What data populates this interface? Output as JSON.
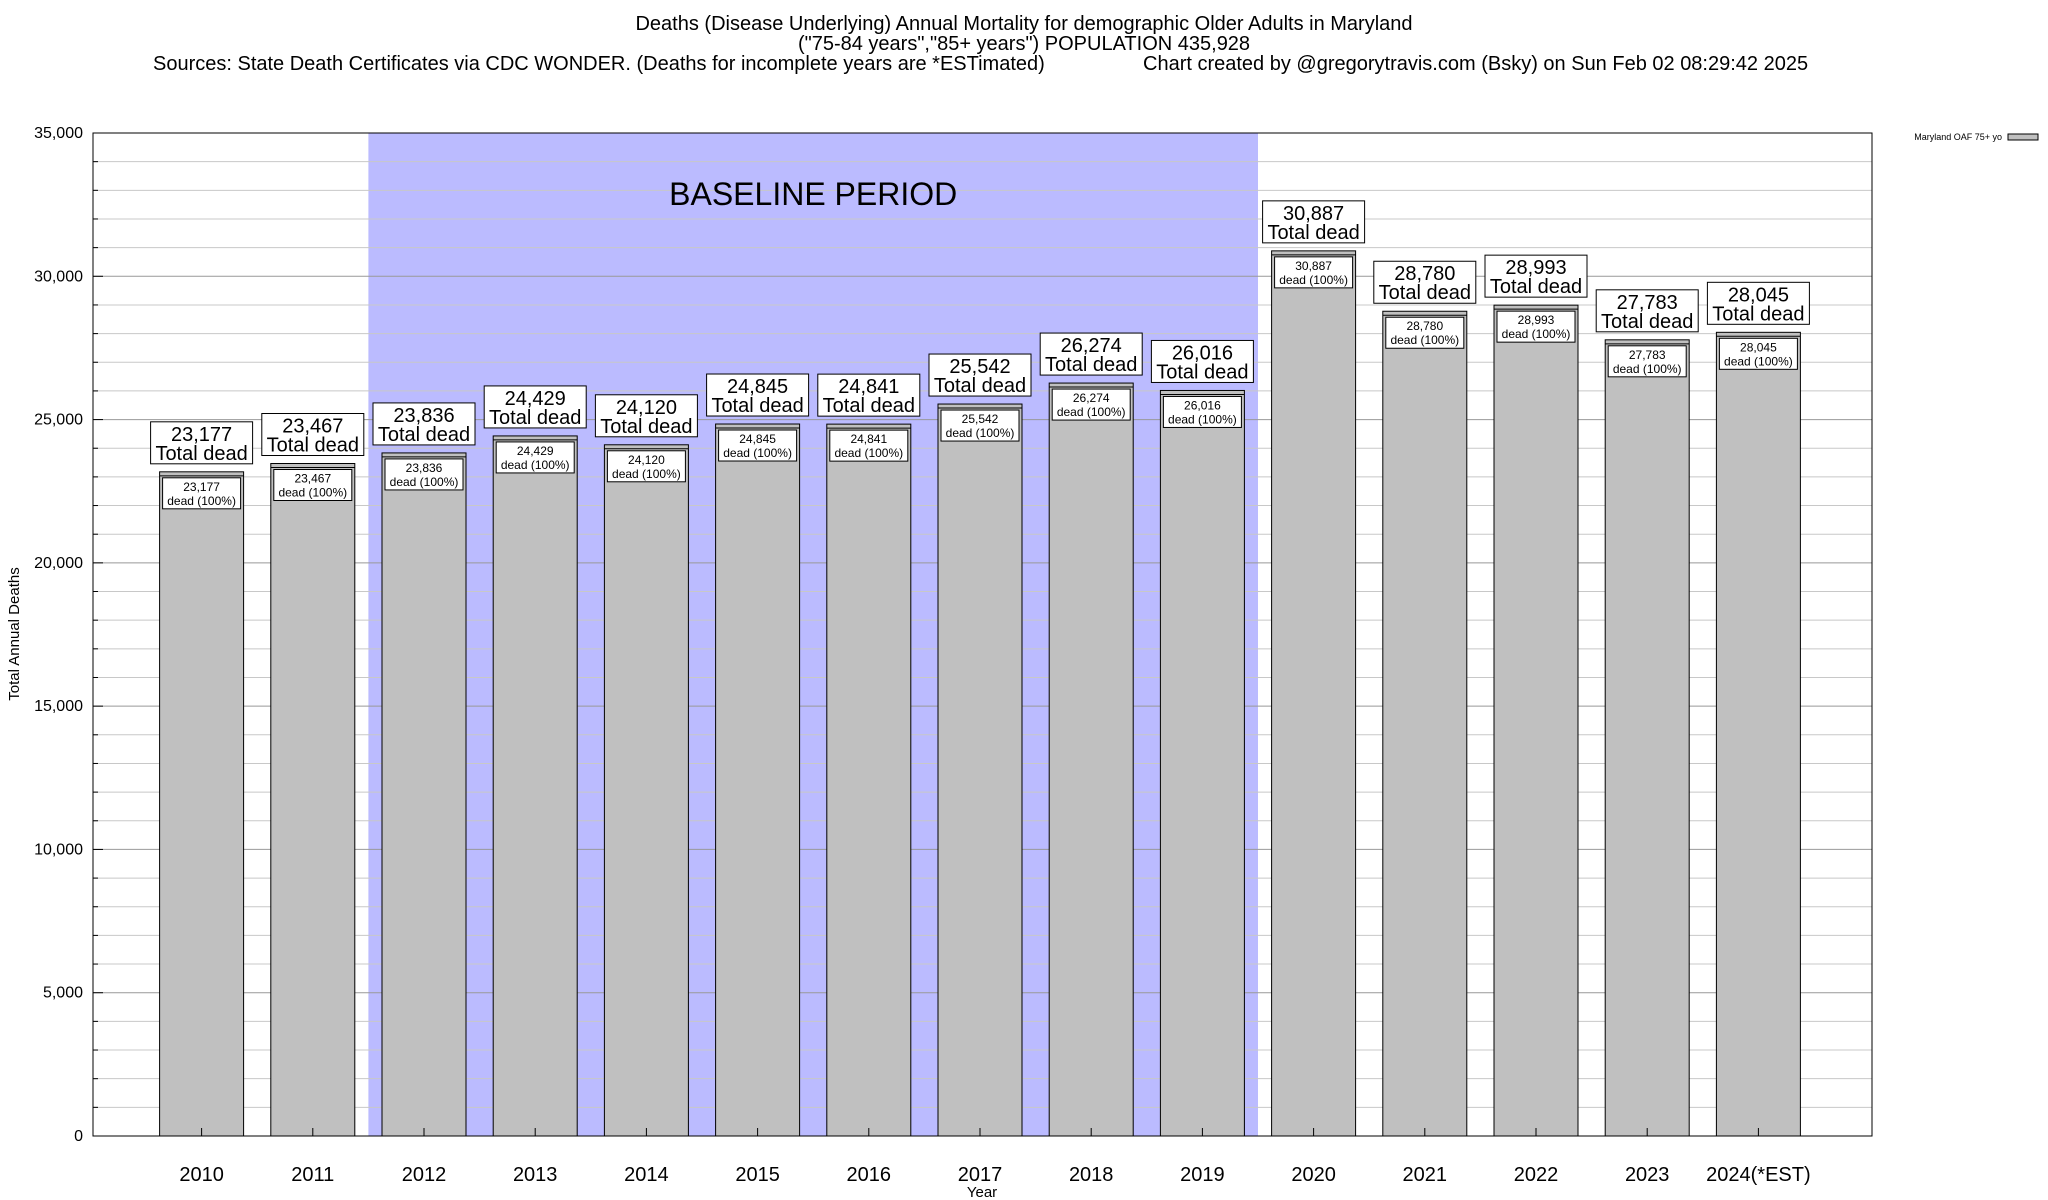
{
  "header": {
    "title_line1": "Deaths (Disease Underlying) Annual Mortality for demographic Older Adults in Maryland",
    "title_line2": "(\"75-84 years\",\"85+ years\") POPULATION 435,928",
    "sources": "Sources: State Death Certificates via CDC WONDER. (Deaths for incomplete years are *ESTimated)",
    "credit": "Chart created by @gregorytravis.com (Bsky) on Sun Feb 02 08:29:42 2025"
  },
  "chart_data": {
    "type": "bar",
    "categories": [
      "2010",
      "2011",
      "2012",
      "2013",
      "2014",
      "2015",
      "2016",
      "2017",
      "2018",
      "2019",
      "2020",
      "2021",
      "2022",
      "2023",
      "2024(*EST)"
    ],
    "series": [
      {
        "name": "Maryland OAF 75+ yo",
        "values": [
          23177,
          23467,
          23836,
          24429,
          24120,
          24845,
          24841,
          25542,
          26274,
          26016,
          30887,
          28780,
          28993,
          27783,
          28045
        ]
      }
    ],
    "value_labels": [
      "23,177",
      "23,467",
      "23,836",
      "24,429",
      "24,120",
      "24,845",
      "24,841",
      "25,542",
      "26,274",
      "26,016",
      "30,887",
      "28,780",
      "28,993",
      "27,783",
      "28,045"
    ],
    "total_label": "Total dead",
    "inner_label_suffix": "dead (100%)",
    "xlabel": "Year",
    "ylabel": "Total Annual Deaths",
    "ylim": [
      0,
      35000
    ],
    "yticks": [
      0,
      5000,
      10000,
      15000,
      20000,
      25000,
      30000,
      35000
    ],
    "ytick_labels": [
      "0",
      "5,000",
      "10,000",
      "15,000",
      "20,000",
      "25,000",
      "30,000",
      "35,000"
    ],
    "baseline": {
      "label": "BASELINE PERIOD",
      "start": "2012",
      "end": "2019",
      "color": "#bbbbff"
    },
    "bar_color": "#c0c0c0",
    "legend_position": "top-right",
    "grid": true
  }
}
